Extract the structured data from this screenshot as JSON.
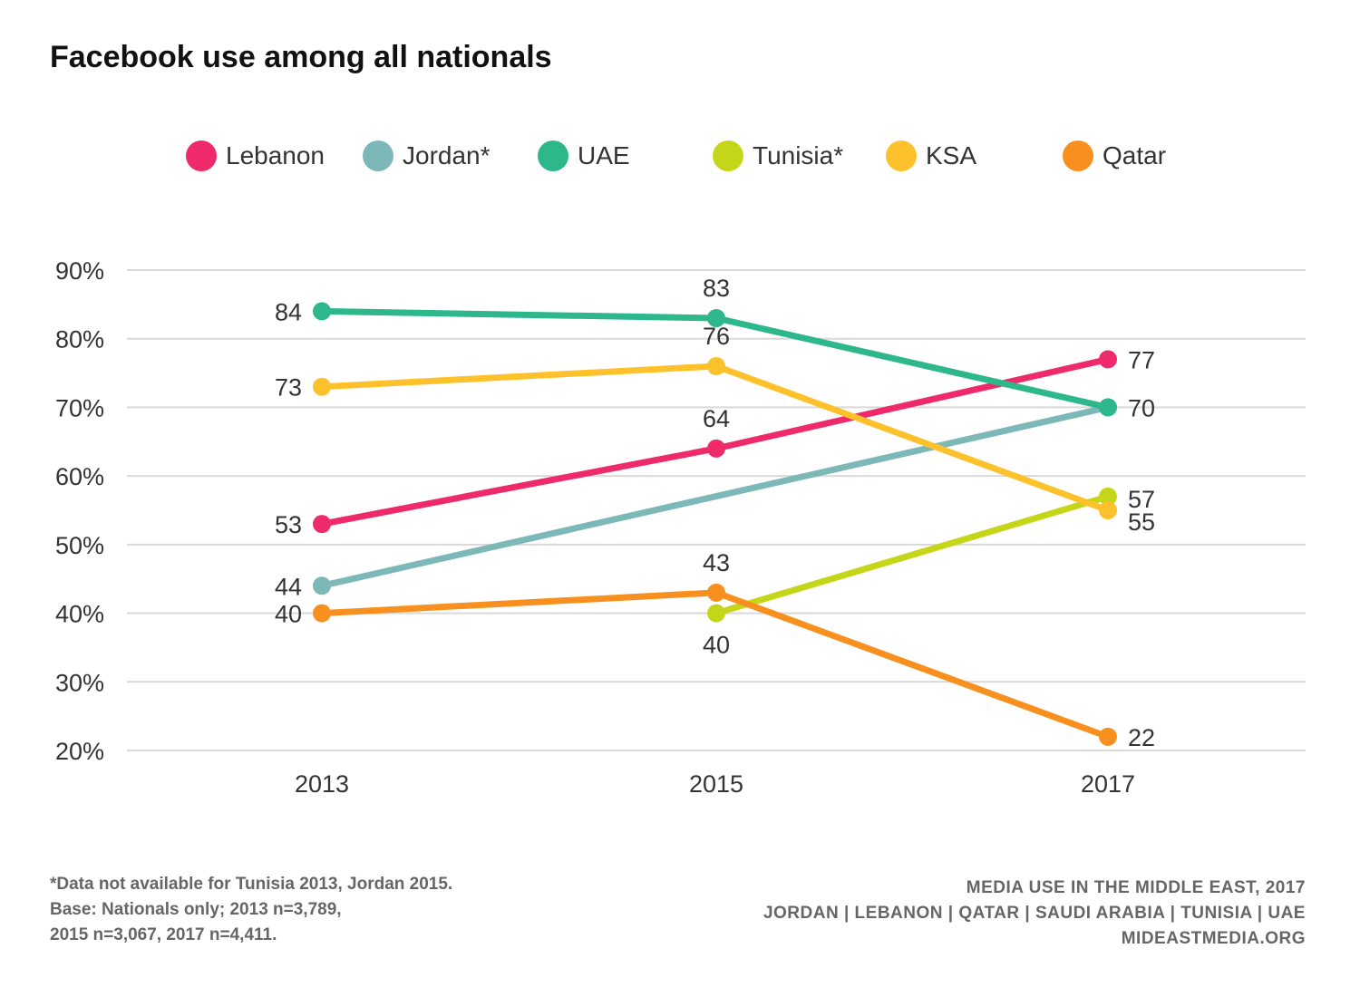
{
  "chart_data": {
    "type": "line",
    "title": "Facebook use among all nationals",
    "xlabel": "",
    "ylabel": "",
    "categories": [
      "2013",
      "2015",
      "2017"
    ],
    "ylim": [
      20,
      90
    ],
    "yticks": [
      20,
      30,
      40,
      50,
      60,
      70,
      80,
      90
    ],
    "ytick_labels": [
      "20%",
      "30%",
      "40%",
      "50%",
      "60%",
      "70%",
      "80%",
      "90%"
    ],
    "grid": true,
    "legend_position": "top",
    "series": [
      {
        "name": "Lebanon",
        "color": "#EE2A6B",
        "values": [
          53,
          64,
          77
        ]
      },
      {
        "name": "Jordan*",
        "color": "#7DB8B8",
        "values": [
          44,
          null,
          70
        ]
      },
      {
        "name": "UAE",
        "color": "#2DB78A",
        "values": [
          84,
          83,
          70
        ]
      },
      {
        "name": "Tunisia*",
        "color": "#C5D619",
        "values": [
          null,
          40,
          57
        ]
      },
      {
        "name": "KSA",
        "color": "#FDC22B",
        "values": [
          73,
          76,
          55
        ]
      },
      {
        "name": "Qatar",
        "color": "#F7901E",
        "values": [
          40,
          43,
          22
        ]
      }
    ],
    "data_labels": [
      {
        "series": "UAE",
        "category": "2013",
        "text": "84",
        "side": "left"
      },
      {
        "series": "KSA",
        "category": "2013",
        "text": "73",
        "side": "left"
      },
      {
        "series": "Lebanon",
        "category": "2013",
        "text": "53",
        "side": "left"
      },
      {
        "series": "Jordan*",
        "category": "2013",
        "text": "44",
        "side": "left"
      },
      {
        "series": "Qatar",
        "category": "2013",
        "text": "40",
        "side": "left"
      },
      {
        "series": "UAE",
        "category": "2015",
        "text": "83",
        "side": "above"
      },
      {
        "series": "KSA",
        "category": "2015",
        "text": "76",
        "side": "above"
      },
      {
        "series": "Lebanon",
        "category": "2015",
        "text": "64",
        "side": "above"
      },
      {
        "series": "Qatar",
        "category": "2015",
        "text": "43",
        "side": "above"
      },
      {
        "series": "Tunisia*",
        "category": "2015",
        "text": "40",
        "side": "below"
      },
      {
        "series": "Lebanon",
        "category": "2017",
        "text": "77",
        "side": "right"
      },
      {
        "series": "UAE",
        "category": "2017",
        "text": "70",
        "side": "right"
      },
      {
        "series": "Tunisia*",
        "category": "2017",
        "text": "57",
        "side": "right-up"
      },
      {
        "series": "KSA",
        "category": "2017",
        "text": "55",
        "side": "right-down"
      },
      {
        "series": "Qatar",
        "category": "2017",
        "text": "22",
        "side": "right"
      }
    ]
  },
  "footnote": {
    "line1": "*Data not available for Tunisia 2013, Jordan 2015.",
    "line2": "Base: Nationals only; 2013 n=3,789,",
    "line3": "2015 n=3,067, 2017 n=4,411."
  },
  "source": {
    "line1": "MEDIA USE IN THE MIDDLE EAST, 2017",
    "line2": "JORDAN | LEBANON | QATAR | SAUDI ARABIA | TUNISIA | UAE",
    "line3": "MIDEASTMEDIA.ORG"
  }
}
